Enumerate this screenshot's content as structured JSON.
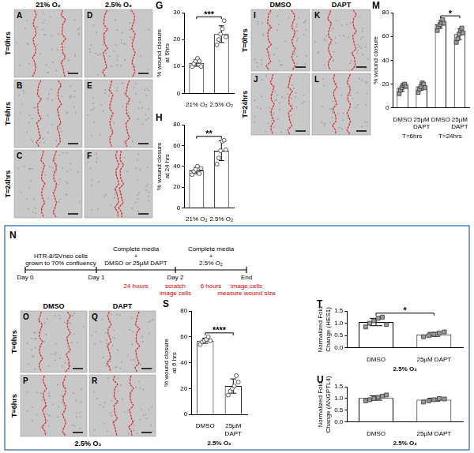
{
  "image_grids": [
    {
      "columns": [
        "21% O₂",
        "2.5% O₂"
      ],
      "rows": [
        "T=0hrs",
        "T=6hrs",
        "T=24hrs"
      ],
      "letters": [
        [
          "A",
          "D"
        ],
        [
          "B",
          "E"
        ],
        [
          "C",
          "F"
        ]
      ]
    },
    {
      "columns": [
        "DMSO",
        "DAPT"
      ],
      "rows": [
        "T=0hrs",
        "T=24hrs"
      ],
      "letters": [
        [
          "I",
          "K"
        ],
        [
          "J",
          "L"
        ]
      ]
    },
    {
      "columns": [
        "DMSO",
        "DAPT"
      ],
      "rows": [
        "T=0hrs",
        "T=6hrs"
      ],
      "letters": [
        [
          "O",
          "Q"
        ],
        [
          "P",
          "R"
        ]
      ],
      "caption": "2.5% O₂"
    }
  ],
  "timeline": {
    "panel_label": "N",
    "ticks": [
      "Day 0",
      "Day 1",
      "Day 2",
      "End"
    ],
    "phases": [
      [
        "HTR-8/SVneo cells",
        "grown to 70% confluency"
      ],
      [
        "Complete media",
        "+",
        "DMSO or 25µM DAPT"
      ],
      [
        "Complete media",
        "+",
        "2.5% O₂"
      ]
    ],
    "durations": [
      null,
      "24 hours",
      "6 hours"
    ],
    "events": [
      null,
      null,
      [
        "scratch",
        "image cells"
      ],
      [
        "image cells",
        "measure wound size"
      ]
    ]
  },
  "chart_data": [
    {
      "panel_label": "G",
      "type": "bar",
      "ylabel": "% wound closure at 6hrs",
      "categories": [
        "21% O₂",
        "2.5% O₂"
      ],
      "values": [
        11.3,
        22
      ],
      "errors": [
        1.2,
        3.1
      ],
      "points": [
        [
          10,
          11,
          12,
          13,
          12,
          10
        ],
        [
          18,
          20,
          22,
          24,
          27,
          21
        ]
      ],
      "ylim": [
        0,
        30
      ],
      "yticks": [
        0,
        10,
        20,
        30
      ],
      "color": "#ffffff",
      "marker": "circle",
      "annotation": {
        "text": "***"
      }
    },
    {
      "panel_label": "H",
      "type": "bar",
      "ylabel": "% wound closure at 24 hrs",
      "categories": [
        "21% O₂",
        "2.5% O₂"
      ],
      "values": [
        36,
        55
      ],
      "errors": [
        3,
        9.5
      ],
      "points": [
        [
          32,
          35,
          37,
          40,
          33,
          38
        ],
        [
          42,
          48,
          55,
          64,
          65,
          56
        ]
      ],
      "ylim": [
        0,
        80
      ],
      "yticks": [
        0,
        20,
        40,
        60,
        80
      ],
      "color": "#ffffff",
      "marker": "circle",
      "annotation": {
        "text": "**"
      }
    },
    {
      "panel_label": "M",
      "type": "bar",
      "ylabel": "% wound closure",
      "categories": [
        "DMSO",
        "25µM DAPT",
        "DMSO",
        "25µM DAPT"
      ],
      "groups": [
        "T=6hrs",
        "T=6hrs",
        "T=24hrs",
        "T=24hrs"
      ],
      "values": [
        17,
        18,
        70,
        62
      ],
      "errors": [
        3,
        3,
        3,
        4.5
      ],
      "points": [
        [
          12,
          15,
          17,
          19,
          20,
          18
        ],
        [
          13,
          16,
          18,
          21,
          20,
          17
        ],
        [
          65,
          68,
          70,
          72,
          74,
          71
        ],
        [
          55,
          58,
          62,
          65,
          67,
          63
        ]
      ],
      "ylim": [
        0,
        80
      ],
      "yticks": [
        0,
        20,
        40,
        60,
        80
      ],
      "color": "#ffffff",
      "marker": "square",
      "annotation": {
        "text": "*",
        "group": "T=24hrs"
      }
    },
    {
      "panel_label": "S",
      "type": "bar",
      "ylabel": "% wound closure at 6 hrs",
      "xlabel": "2.5% O₂",
      "categories": [
        "DMSO",
        "25µM DAPT"
      ],
      "values": [
        57,
        22
      ],
      "errors": [
        2,
        5.5
      ],
      "points": [
        [
          54,
          56,
          57,
          58,
          60,
          57
        ],
        [
          15,
          18,
          20,
          22,
          30,
          25
        ]
      ],
      "ylim": [
        0,
        80
      ],
      "yticks": [
        0,
        20,
        40,
        60,
        80
      ],
      "color": "#ffffff",
      "marker": "circle",
      "annotation": {
        "text": "****"
      }
    },
    {
      "panel_label": "T",
      "type": "bar",
      "ylabel": "Normalized Fold Change (HES1)",
      "xlabel": "2.5% O₂",
      "categories": [
        "DMSO",
        "25µM DAPT"
      ],
      "values": [
        1.05,
        0.55
      ],
      "errors": [
        0.15,
        0.08
      ],
      "points": [
        [
          0.85,
          1.0,
          1.1,
          1.2,
          1.25,
          0.95
        ],
        [
          0.45,
          0.5,
          0.55,
          0.6,
          0.65
        ]
      ],
      "ylim": [
        0,
        1.5
      ],
      "yticks": [
        {
          "value": 0,
          "label": "0.0"
        },
        0.5,
        {
          "value": 1,
          "label": "1.0"
        },
        1.5
      ],
      "color": "#ffffff",
      "marker": "square",
      "annotation": {
        "text": "*"
      }
    },
    {
      "panel_label": "U",
      "type": "bar",
      "ylabel": "Normalized Fold Change (ANGPTL4)",
      "xlabel": "2.5% O₂",
      "categories": [
        "DMSO",
        "25µM DAPT"
      ],
      "values": [
        1.02,
        0.95
      ],
      "errors": [
        0.09,
        0.06
      ],
      "points": [
        [
          0.9,
          0.95,
          1.0,
          1.05,
          1.1,
          1.15
        ],
        [
          0.85,
          0.9,
          0.95,
          1.0,
          0.98
        ]
      ],
      "ylim": [
        0,
        1.5
      ],
      "yticks": [
        {
          "value": 0,
          "label": "0.0"
        },
        0.5,
        {
          "value": 1,
          "label": "1.0"
        },
        1.5
      ],
      "color": "#ffffff",
      "marker": "square"
    }
  ]
}
